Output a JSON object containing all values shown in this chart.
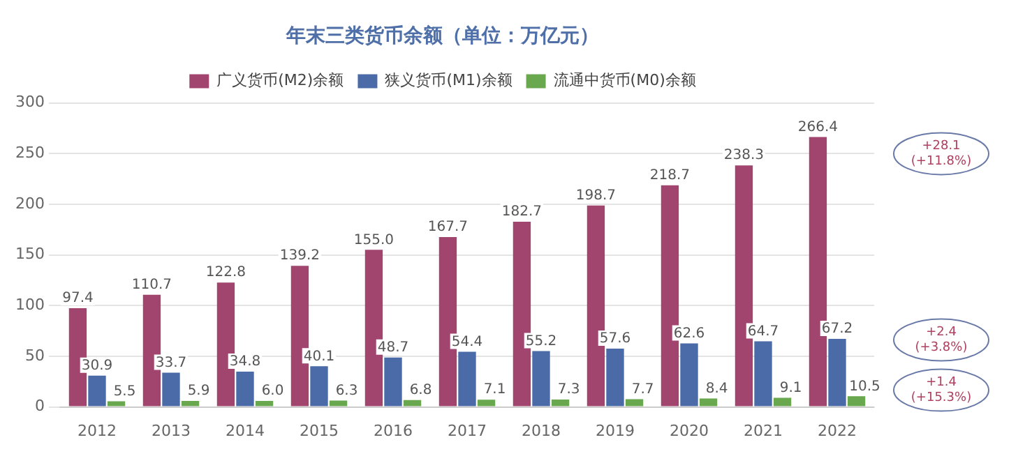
{
  "chart_data": {
    "type": "bar",
    "title": "年末三类货币余额（单位：万亿元）",
    "categories": [
      "2012",
      "2013",
      "2014",
      "2015",
      "2016",
      "2017",
      "2018",
      "2019",
      "2020",
      "2021",
      "2022"
    ],
    "series": [
      {
        "name": "广义货币(M2)余额",
        "color": "#a2456e",
        "values": [
          97.4,
          110.7,
          122.8,
          139.2,
          155.0,
          167.7,
          182.7,
          198.7,
          218.7,
          238.3,
          266.4
        ],
        "value_labels": [
          "97.4",
          "110.7",
          "122.8",
          "139.2",
          "155.0",
          "167.7",
          "182.7",
          "198.7",
          "218.7",
          "238.3",
          "266.4"
        ]
      },
      {
        "name": "狭义货币(M1)余额",
        "color": "#4a6aa8",
        "values": [
          30.9,
          33.7,
          34.8,
          40.1,
          48.7,
          54.4,
          55.2,
          57.6,
          62.6,
          64.7,
          67.2
        ],
        "value_labels": [
          "30.9",
          "33.7",
          "34.8",
          "40.1",
          "48.7",
          "54.4",
          "55.2",
          "57.6",
          "62.6",
          "64.7",
          "67.2"
        ]
      },
      {
        "name": "流通中货币(M0)余额",
        "color": "#6aa84f",
        "values": [
          5.5,
          5.9,
          6.0,
          6.3,
          6.8,
          7.1,
          7.3,
          7.7,
          8.4,
          9.1,
          10.5
        ],
        "value_labels": [
          "5.5",
          "5.9",
          "6.0",
          "6.3",
          "6.8",
          "7.1",
          "7.3",
          "7.7",
          "8.4",
          "9.1",
          "10.5"
        ]
      }
    ],
    "ylim": [
      0,
      300
    ],
    "yticks": [
      0,
      50,
      100,
      150,
      200,
      250,
      300
    ],
    "grid": "y",
    "legend": "top",
    "annotations": [
      "+28.1 (+11.8%)",
      "+2.4 (+3.8%)",
      "+1.4 (+15.3%)"
    ]
  }
}
